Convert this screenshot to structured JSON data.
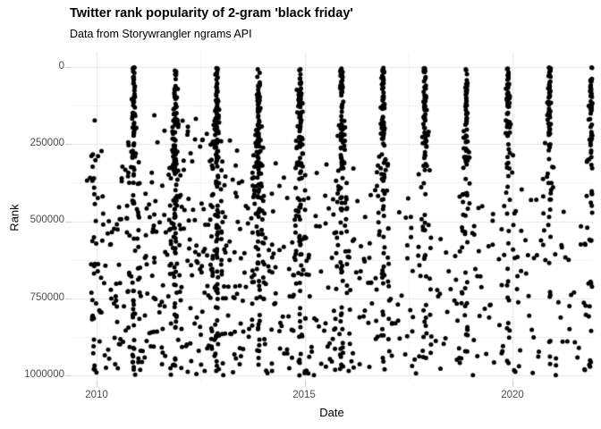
{
  "header": {
    "title": "Twitter rank popularity of 2-gram 'black friday'",
    "subtitle": "Data from Storywrangler ngrams API"
  },
  "chart_data": {
    "type": "scatter",
    "title": "Twitter rank popularity of 2-gram 'black friday'",
    "subtitle": "Data from Storywrangler ngrams API",
    "xlabel": "Date",
    "ylabel": "Rank",
    "x_ticks": [
      2010,
      2015,
      2020
    ],
    "x_tick_labels": [
      "2010",
      "2015",
      "2020"
    ],
    "x_minor_ticks": [
      2012.5,
      2017.5
    ],
    "y_ticks": [
      0,
      250000,
      500000,
      750000,
      1000000
    ],
    "y_tick_labels": [
      "0",
      "250000",
      "500000",
      "750000",
      "1000000"
    ],
    "y_minor_ticks": [
      125000,
      375000,
      625000,
      875000
    ],
    "x_range": [
      2009.4,
      2021.95
    ],
    "y_range": [
      0,
      1000000
    ],
    "y_axis_reversed": true,
    "grid": true,
    "legend": "none",
    "point_color": "#000000",
    "point_radius": 2.5,
    "background_color": "#ffffff",
    "grid_major_color": "#e7e7e7",
    "grid_minor_color": "#f1f1f1",
    "tick_mark_color": "#c9c9c9",
    "axis_text_color": "#4d4d4d",
    "seasonal_pattern": "Dense vertical bands of points reaching rank 0 around late November (Black Friday) each year from 2010 to 2021; sparse scatter at worse ranks (250000-1000000) during the rest of each year, thinning in later years; earliest points appear near November 2009 at ranks above ~190000.",
    "generator": {
      "seed": 20211126,
      "band_x_sigma_dense": 0.016,
      "band_x_sigma_tail": 0.028,
      "shoulder_span": [
        0.03,
        0.16
      ],
      "bands": [
        {
          "center": 2009.92,
          "dense": 0,
          "sigma": 0,
          "tail": 30,
          "shoulder": 10,
          "tail_rank_min": 190000
        },
        {
          "center": 2010.89,
          "dense": 50,
          "sigma": 185000,
          "tail": 38,
          "shoulder": 28
        },
        {
          "center": 2011.89,
          "dense": 56,
          "sigma": 235000,
          "tail": 52,
          "shoulder": 44
        },
        {
          "center": 2012.89,
          "dense": 60,
          "sigma": 245000,
          "tail": 56,
          "shoulder": 48
        },
        {
          "center": 2013.89,
          "dense": 55,
          "sigma": 230000,
          "tail": 48,
          "shoulder": 42
        },
        {
          "center": 2014.89,
          "dense": 52,
          "sigma": 215000,
          "tail": 44,
          "shoulder": 38
        },
        {
          "center": 2015.89,
          "dense": 50,
          "sigma": 205000,
          "tail": 40,
          "shoulder": 32
        },
        {
          "center": 2016.89,
          "dense": 48,
          "sigma": 195000,
          "tail": 36,
          "shoulder": 28
        },
        {
          "center": 2017.89,
          "dense": 46,
          "sigma": 175000,
          "tail": 30,
          "shoulder": 24
        },
        {
          "center": 2018.89,
          "dense": 45,
          "sigma": 170000,
          "tail": 28,
          "shoulder": 20
        },
        {
          "center": 2019.89,
          "dense": 45,
          "sigma": 160000,
          "tail": 26,
          "shoulder": 18
        },
        {
          "center": 2020.89,
          "dense": 44,
          "sigma": 155000,
          "tail": 24,
          "shoulder": 16
        },
        {
          "center": 2021.89,
          "dense": 46,
          "sigma": 185000,
          "tail": 28,
          "shoulder": 12
        }
      ],
      "offseason": [
        {
          "from": 2009.97,
          "to": 2010.8,
          "count": 58,
          "rank_min": 230000,
          "rank_max": 1000000
        },
        {
          "from": 2011.0,
          "to": 2011.8,
          "count": 68,
          "rank_min": 130000,
          "rank_max": 1000000
        },
        {
          "from": 2012.0,
          "to": 2012.8,
          "count": 70,
          "rank_min": 150000,
          "rank_max": 1000000
        },
        {
          "from": 2013.0,
          "to": 2013.8,
          "count": 60,
          "rank_min": 200000,
          "rank_max": 1000000
        },
        {
          "from": 2014.0,
          "to": 2014.8,
          "count": 52,
          "rank_min": 250000,
          "rank_max": 1000000
        },
        {
          "from": 2015.0,
          "to": 2015.8,
          "count": 45,
          "rank_min": 260000,
          "rank_max": 1000000
        },
        {
          "from": 2016.0,
          "to": 2016.8,
          "count": 40,
          "rank_min": 300000,
          "rank_max": 1000000
        },
        {
          "from": 2017.0,
          "to": 2017.8,
          "count": 30,
          "rank_min": 380000,
          "rank_max": 1000000
        },
        {
          "from": 2018.0,
          "to": 2018.8,
          "count": 28,
          "rank_min": 430000,
          "rank_max": 1000000
        },
        {
          "from": 2019.0,
          "to": 2019.8,
          "count": 26,
          "rank_min": 430000,
          "rank_max": 1000000
        },
        {
          "from": 2020.0,
          "to": 2020.8,
          "count": 28,
          "rank_min": 380000,
          "rank_max": 1000000
        },
        {
          "from": 2021.0,
          "to": 2021.78,
          "count": 24,
          "rank_min": 400000,
          "rank_max": 1000000
        }
      ]
    }
  }
}
